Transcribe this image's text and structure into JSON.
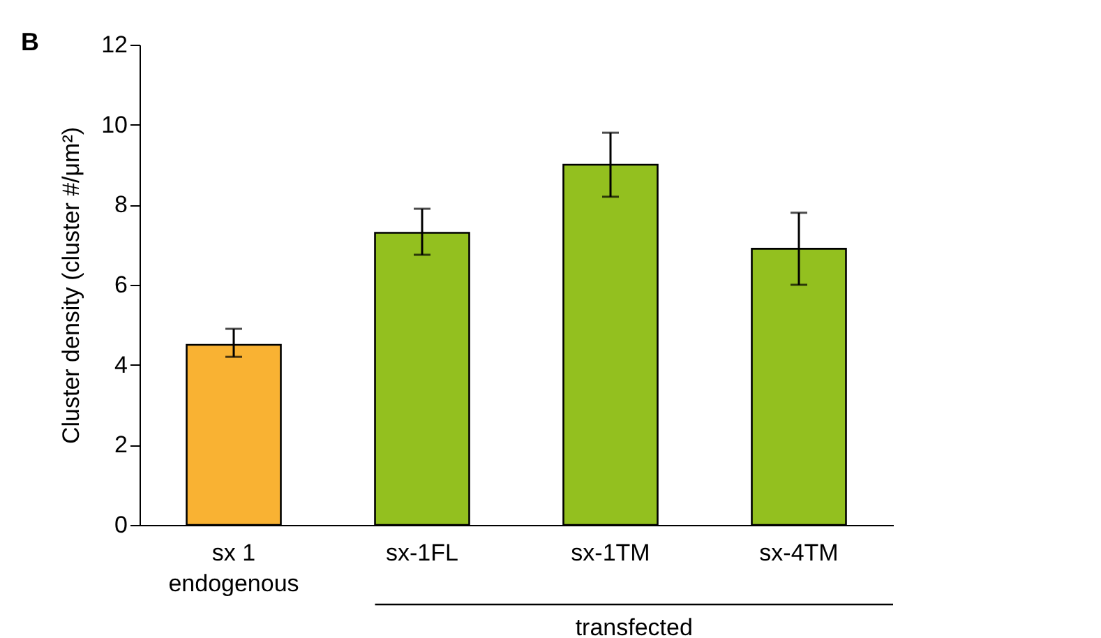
{
  "chart_data": {
    "type": "bar",
    "categories": [
      "sx 1\nendogenous",
      "sx-1FL",
      "sx-1TM",
      "sx-4TM"
    ],
    "values": [
      4.5,
      7.3,
      9.0,
      6.9
    ],
    "colors": [
      "#f9b233",
      "#93c01f",
      "#93c01f",
      "#93c01f"
    ],
    "errors": [
      [
        4.2,
        4.9
      ],
      [
        6.75,
        7.9
      ],
      [
        8.2,
        9.8
      ],
      [
        6.0,
        7.8
      ]
    ],
    "ylabel": "Cluster density (cluster #/μm²)",
    "ylim": [
      0,
      12
    ],
    "yticks": [
      0,
      2,
      4,
      6,
      8,
      10,
      12
    ],
    "grid": false,
    "annotations": [
      "B",
      "transfected"
    ]
  }
}
